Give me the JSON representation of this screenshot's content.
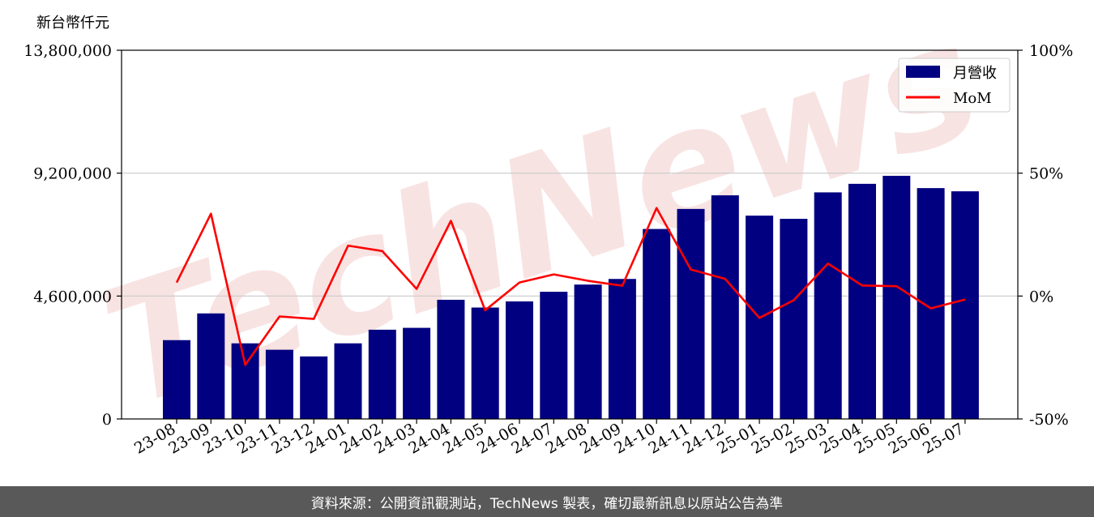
{
  "page": {
    "footer_text": "資料來源：公開資訊觀測站，TechNews 製表，確切最新訊息以原站公告為準",
    "watermark": "TechNews"
  },
  "chart_data": {
    "type": "bar",
    "y_unit_label": "新台幣仟元",
    "categories": [
      "23-08",
      "23-09",
      "23-10",
      "23-11",
      "23-12",
      "24-01",
      "24-02",
      "24-03",
      "24-04",
      "24-05",
      "24-06",
      "24-07",
      "24-08",
      "24-09",
      "24-10",
      "24-11",
      "24-12",
      "25-01",
      "25-02",
      "25-03",
      "25-04",
      "25-05",
      "25-06",
      "25-07"
    ],
    "series": [
      {
        "name": "月營收",
        "type": "bar",
        "axis": "left",
        "color": "#000080",
        "values": [
          2950000,
          3950000,
          2830000,
          2590000,
          2340000,
          2830000,
          3340000,
          3410000,
          4460000,
          4170000,
          4400000,
          4760000,
          5030000,
          5240000,
          7110000,
          7860000,
          8370000,
          7610000,
          7490000,
          8480000,
          8800000,
          9100000,
          8640000,
          8520000
        ]
      },
      {
        "name": "MoM",
        "type": "line",
        "axis": "right",
        "color": "#ff0000",
        "values": [
          5.5,
          33.5,
          -28,
          -8.3,
          -9.3,
          20.5,
          18.3,
          2.9,
          30.6,
          -5.8,
          5.5,
          8.8,
          6.2,
          4.2,
          35.8,
          10.8,
          7,
          -8.9,
          -1.7,
          13.2,
          4.3,
          4,
          -5,
          -1.4
        ]
      }
    ],
    "y_left": {
      "min": 0,
      "max": 13800000,
      "ticks": [
        0,
        4600000,
        9200000,
        13800000
      ],
      "tick_labels": [
        "0",
        "4,600,000",
        "9,200,000",
        "13,800,000"
      ]
    },
    "y_right": {
      "min": -50,
      "max": 100,
      "ticks": [
        -50,
        0,
        50,
        100
      ],
      "tick_labels": [
        "-50%",
        "0%",
        "50%",
        "100%"
      ]
    },
    "grid": "horizontal",
    "legend": {
      "position": "top-right",
      "entries": [
        "月營收",
        "MoM"
      ]
    }
  }
}
